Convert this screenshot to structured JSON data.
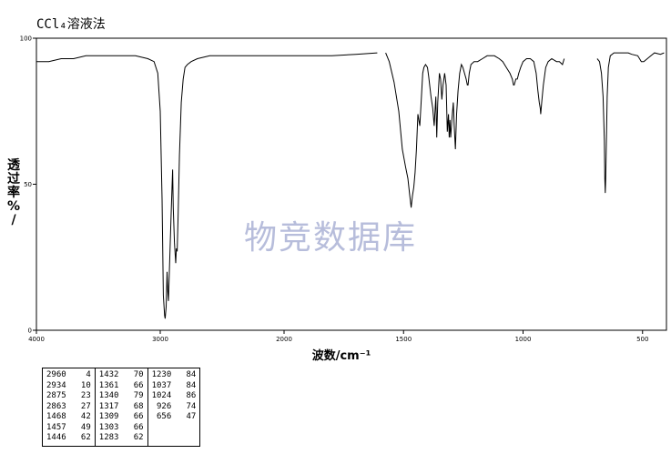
{
  "title": "CCl₄溶液法",
  "watermark": "物竞数据库",
  "chart_data": {
    "type": "line",
    "title": "CCl₄溶液法",
    "xlabel": "波数/cm⁻¹",
    "ylabel": "透过率%/",
    "xlim": [
      4000,
      400
    ],
    "ylim": [
      0,
      100
    ],
    "x_ticks": [
      4000,
      3000,
      2000,
      1500,
      1000,
      500
    ],
    "x_tick_labels": [
      "4000",
      "3000",
      "2000",
      "1500",
      "1000",
      "500"
    ],
    "y_ticks": [
      0,
      50,
      100
    ],
    "y_tick_labels": [
      "0",
      "50",
      "100"
    ],
    "segments": [
      [
        [
          4000,
          92
        ],
        [
          3900,
          92
        ],
        [
          3800,
          93
        ],
        [
          3700,
          93
        ],
        [
          3600,
          94
        ],
        [
          3400,
          94
        ],
        [
          3300,
          94
        ],
        [
          3200,
          94
        ],
        [
          3100,
          93
        ],
        [
          3050,
          92
        ],
        [
          3020,
          88
        ],
        [
          3000,
          75
        ],
        [
          2985,
          45
        ],
        [
          2975,
          12
        ],
        [
          2965,
          5
        ],
        [
          2960,
          4
        ],
        [
          2952,
          8
        ],
        [
          2945,
          20
        ],
        [
          2940,
          14
        ],
        [
          2934,
          10
        ],
        [
          2925,
          22
        ],
        [
          2912,
          40
        ],
        [
          2900,
          55
        ],
        [
          2895,
          42
        ],
        [
          2885,
          30
        ],
        [
          2875,
          23
        ],
        [
          2870,
          28
        ],
        [
          2863,
          27
        ],
        [
          2855,
          40
        ],
        [
          2845,
          60
        ],
        [
          2830,
          78
        ],
        [
          2815,
          86
        ],
        [
          2800,
          90
        ],
        [
          2780,
          91
        ],
        [
          2750,
          92
        ],
        [
          2700,
          93
        ],
        [
          2600,
          94
        ],
        [
          2500,
          94
        ],
        [
          2400,
          94
        ],
        [
          2300,
          94
        ],
        [
          2200,
          94
        ],
        [
          2100,
          94
        ],
        [
          2000,
          94
        ],
        [
          1900,
          94
        ],
        [
          1800,
          94
        ],
        [
          1700,
          94.5
        ],
        [
          1610,
          95
        ]
      ],
      [
        [
          1575,
          95
        ],
        [
          1560,
          92
        ],
        [
          1540,
          85
        ],
        [
          1520,
          75
        ],
        [
          1505,
          62
        ],
        [
          1492,
          56
        ],
        [
          1482,
          52
        ],
        [
          1474,
          46
        ],
        [
          1468,
          42
        ],
        [
          1463,
          46
        ],
        [
          1457,
          49
        ],
        [
          1452,
          54
        ],
        [
          1446,
          62
        ],
        [
          1440,
          74
        ],
        [
          1432,
          70
        ],
        [
          1425,
          80
        ],
        [
          1420,
          88
        ],
        [
          1415,
          90
        ],
        [
          1408,
          91
        ],
        [
          1400,
          90
        ],
        [
          1395,
          87
        ],
        [
          1385,
          80
        ],
        [
          1378,
          76
        ],
        [
          1372,
          70
        ],
        [
          1365,
          80
        ],
        [
          1361,
          66
        ],
        [
          1357,
          78
        ],
        [
          1350,
          88
        ],
        [
          1345,
          86
        ],
        [
          1340,
          79
        ],
        [
          1335,
          84
        ],
        [
          1328,
          88
        ],
        [
          1322,
          84
        ],
        [
          1317,
          68
        ],
        [
          1312,
          74
        ],
        [
          1309,
          66
        ],
        [
          1306,
          72
        ],
        [
          1303,
          66
        ],
        [
          1298,
          72
        ],
        [
          1292,
          78
        ],
        [
          1288,
          70
        ],
        [
          1283,
          62
        ],
        [
          1278,
          74
        ],
        [
          1272,
          82
        ],
        [
          1265,
          88
        ],
        [
          1258,
          91
        ],
        [
          1252,
          90
        ],
        [
          1245,
          88
        ],
        [
          1238,
          86
        ],
        [
          1233,
          84
        ],
        [
          1230,
          84
        ],
        [
          1225,
          88
        ],
        [
          1218,
          91
        ],
        [
          1205,
          92
        ],
        [
          1190,
          92
        ],
        [
          1170,
          93
        ],
        [
          1150,
          94
        ],
        [
          1120,
          94
        ],
        [
          1100,
          93
        ],
        [
          1085,
          92
        ],
        [
          1070,
          90
        ],
        [
          1055,
          88
        ],
        [
          1045,
          86
        ],
        [
          1040,
          84
        ],
        [
          1037,
          84
        ],
        [
          1030,
          86
        ],
        [
          1024,
          86
        ],
        [
          1018,
          88
        ],
        [
          1010,
          90
        ],
        [
          1000,
          92
        ],
        [
          985,
          93
        ],
        [
          970,
          93
        ],
        [
          955,
          92
        ],
        [
          945,
          88
        ],
        [
          938,
          82
        ],
        [
          932,
          78
        ],
        [
          928,
          76
        ],
        [
          926,
          74
        ],
        [
          922,
          78
        ],
        [
          915,
          84
        ],
        [
          905,
          90
        ],
        [
          895,
          92
        ],
        [
          880,
          93
        ],
        [
          860,
          92
        ],
        [
          848,
          92
        ],
        [
          835,
          91
        ],
        [
          828,
          93
        ]
      ],
      [
        [
          690,
          93
        ],
        [
          680,
          92
        ],
        [
          672,
          88
        ],
        [
          665,
          80
        ],
        [
          660,
          65
        ],
        [
          658,
          52
        ],
        [
          656,
          47
        ],
        [
          654,
          52
        ],
        [
          651,
          66
        ],
        [
          648,
          80
        ],
        [
          643,
          90
        ],
        [
          635,
          94
        ],
        [
          620,
          95
        ],
        [
          600,
          95
        ],
        [
          580,
          95
        ],
        [
          560,
          95
        ],
        [
          545,
          94.5
        ],
        [
          520,
          94
        ],
        [
          505,
          92
        ],
        [
          495,
          92
        ],
        [
          480,
          93
        ],
        [
          465,
          94
        ],
        [
          450,
          95
        ],
        [
          425,
          94.5
        ],
        [
          410,
          95
        ]
      ]
    ],
    "grid": false,
    "peak_table": [
      [
        "2960",
        "4",
        "1432",
        "70",
        "1230",
        "84"
      ],
      [
        "2934",
        "10",
        "1361",
        "66",
        "1037",
        "84"
      ],
      [
        "2875",
        "23",
        "1340",
        "79",
        "1024",
        "86"
      ],
      [
        "2863",
        "27",
        "1317",
        "68",
        "926",
        "74"
      ],
      [
        "1468",
        "42",
        "1309",
        "66",
        "656",
        "47"
      ],
      [
        "1457",
        "49",
        "1303",
        "66",
        "",
        ""
      ],
      [
        "1446",
        "62",
        "1283",
        "62",
        "",
        ""
      ]
    ]
  }
}
